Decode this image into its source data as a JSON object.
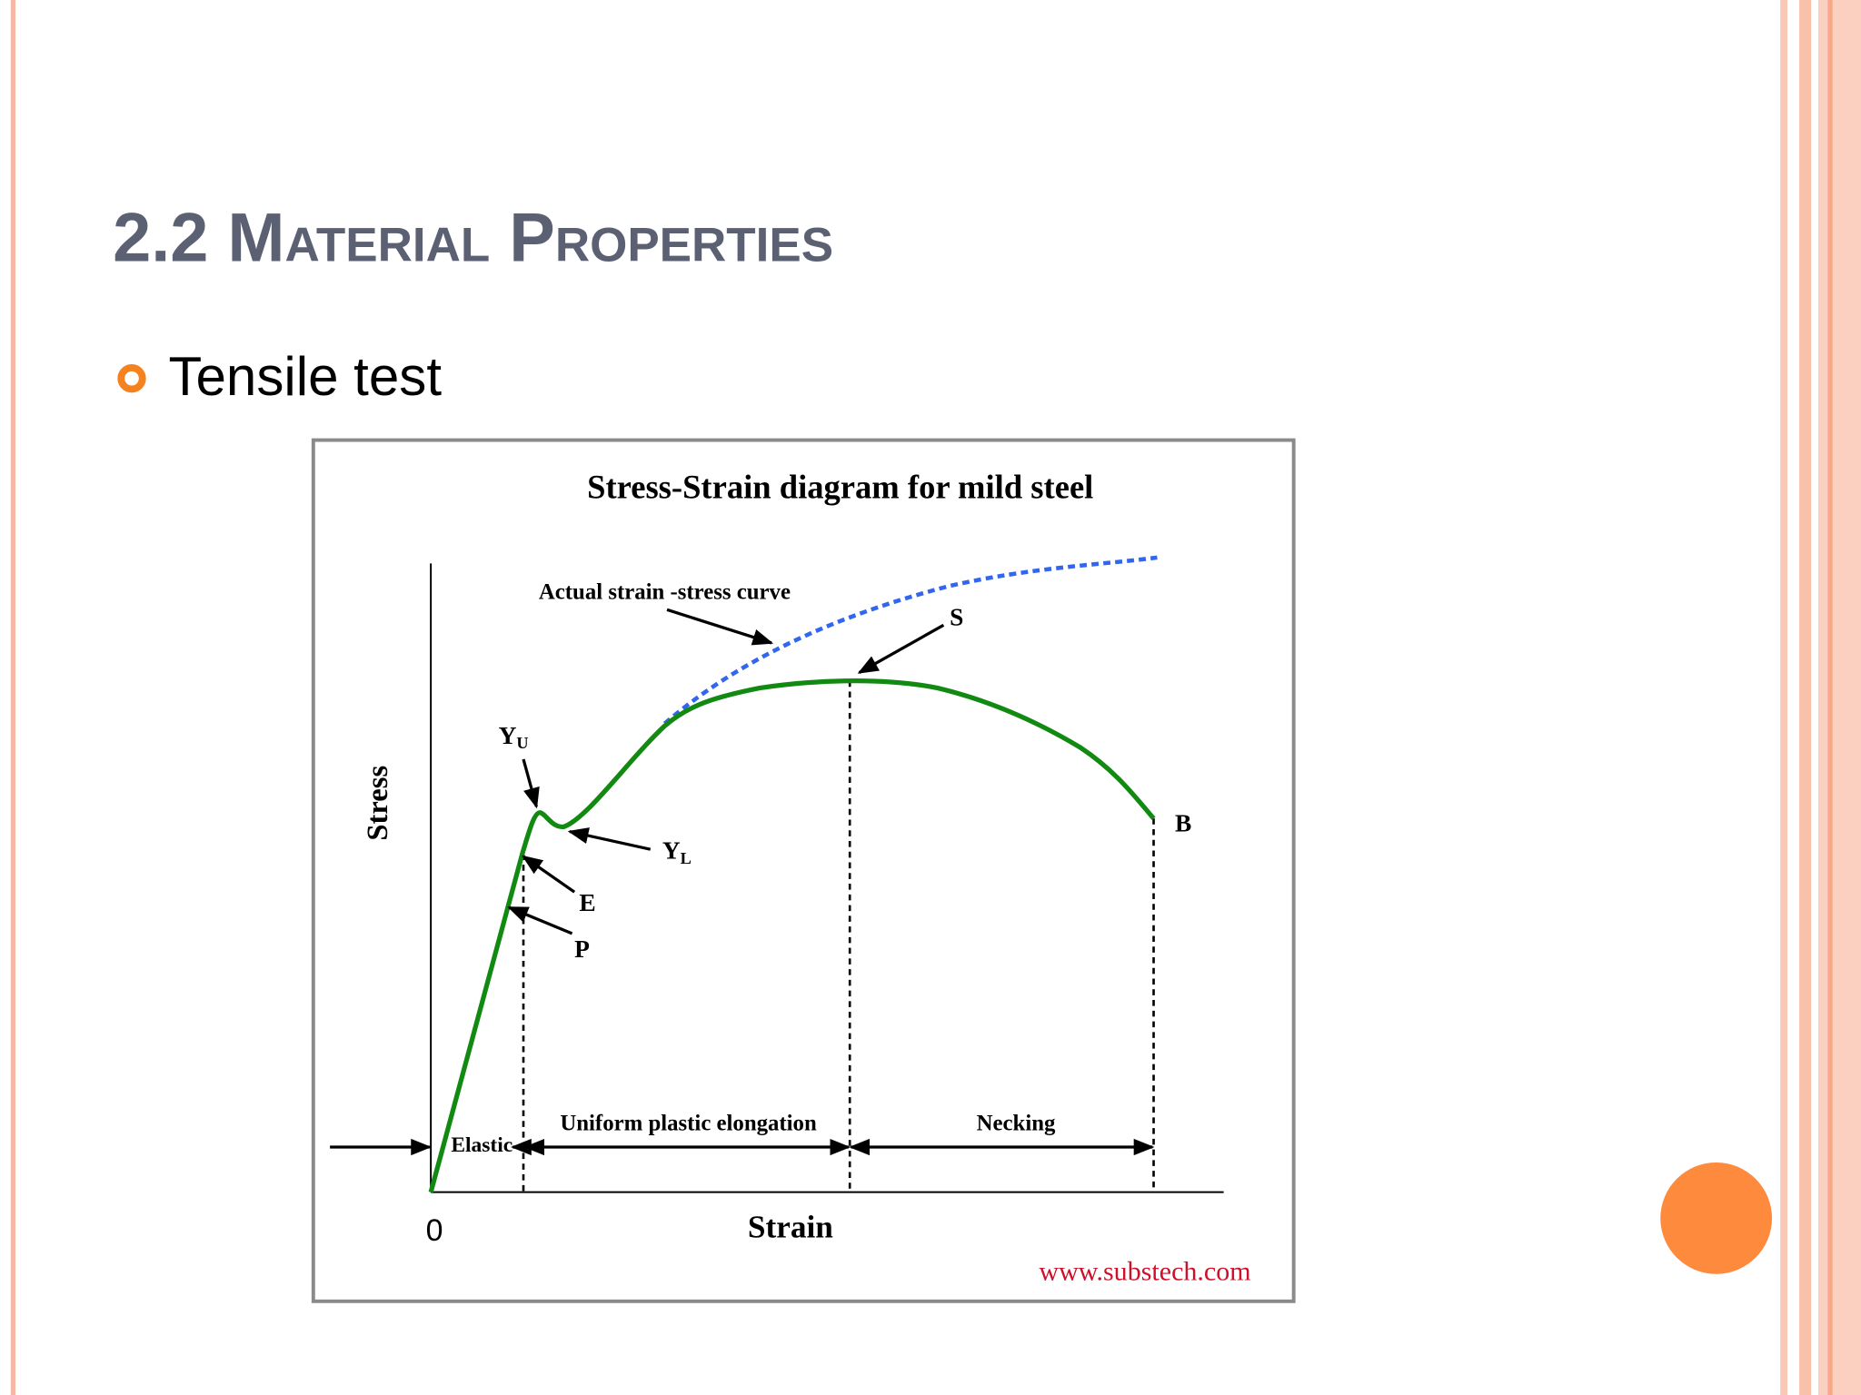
{
  "slide": {
    "title": "2.2 Material Properties",
    "bullets": [
      "Tensile test"
    ]
  },
  "diagram": {
    "title": "Stress-Strain diagram for mild steel",
    "y_axis_label": "Stress",
    "x_axis_label": "Strain",
    "origin_label": "0",
    "curve_label": "Actual strain -stress curve",
    "points": {
      "S": "S",
      "YU": {
        "main": "Y",
        "sub": "U"
      },
      "YL": {
        "main": "Y",
        "sub": "L"
      },
      "E": "E",
      "P": "P",
      "B": "B"
    },
    "regions": [
      "Elastic",
      "Uniform plastic elongation",
      "Necking"
    ],
    "source": "www.substech.com"
  }
}
